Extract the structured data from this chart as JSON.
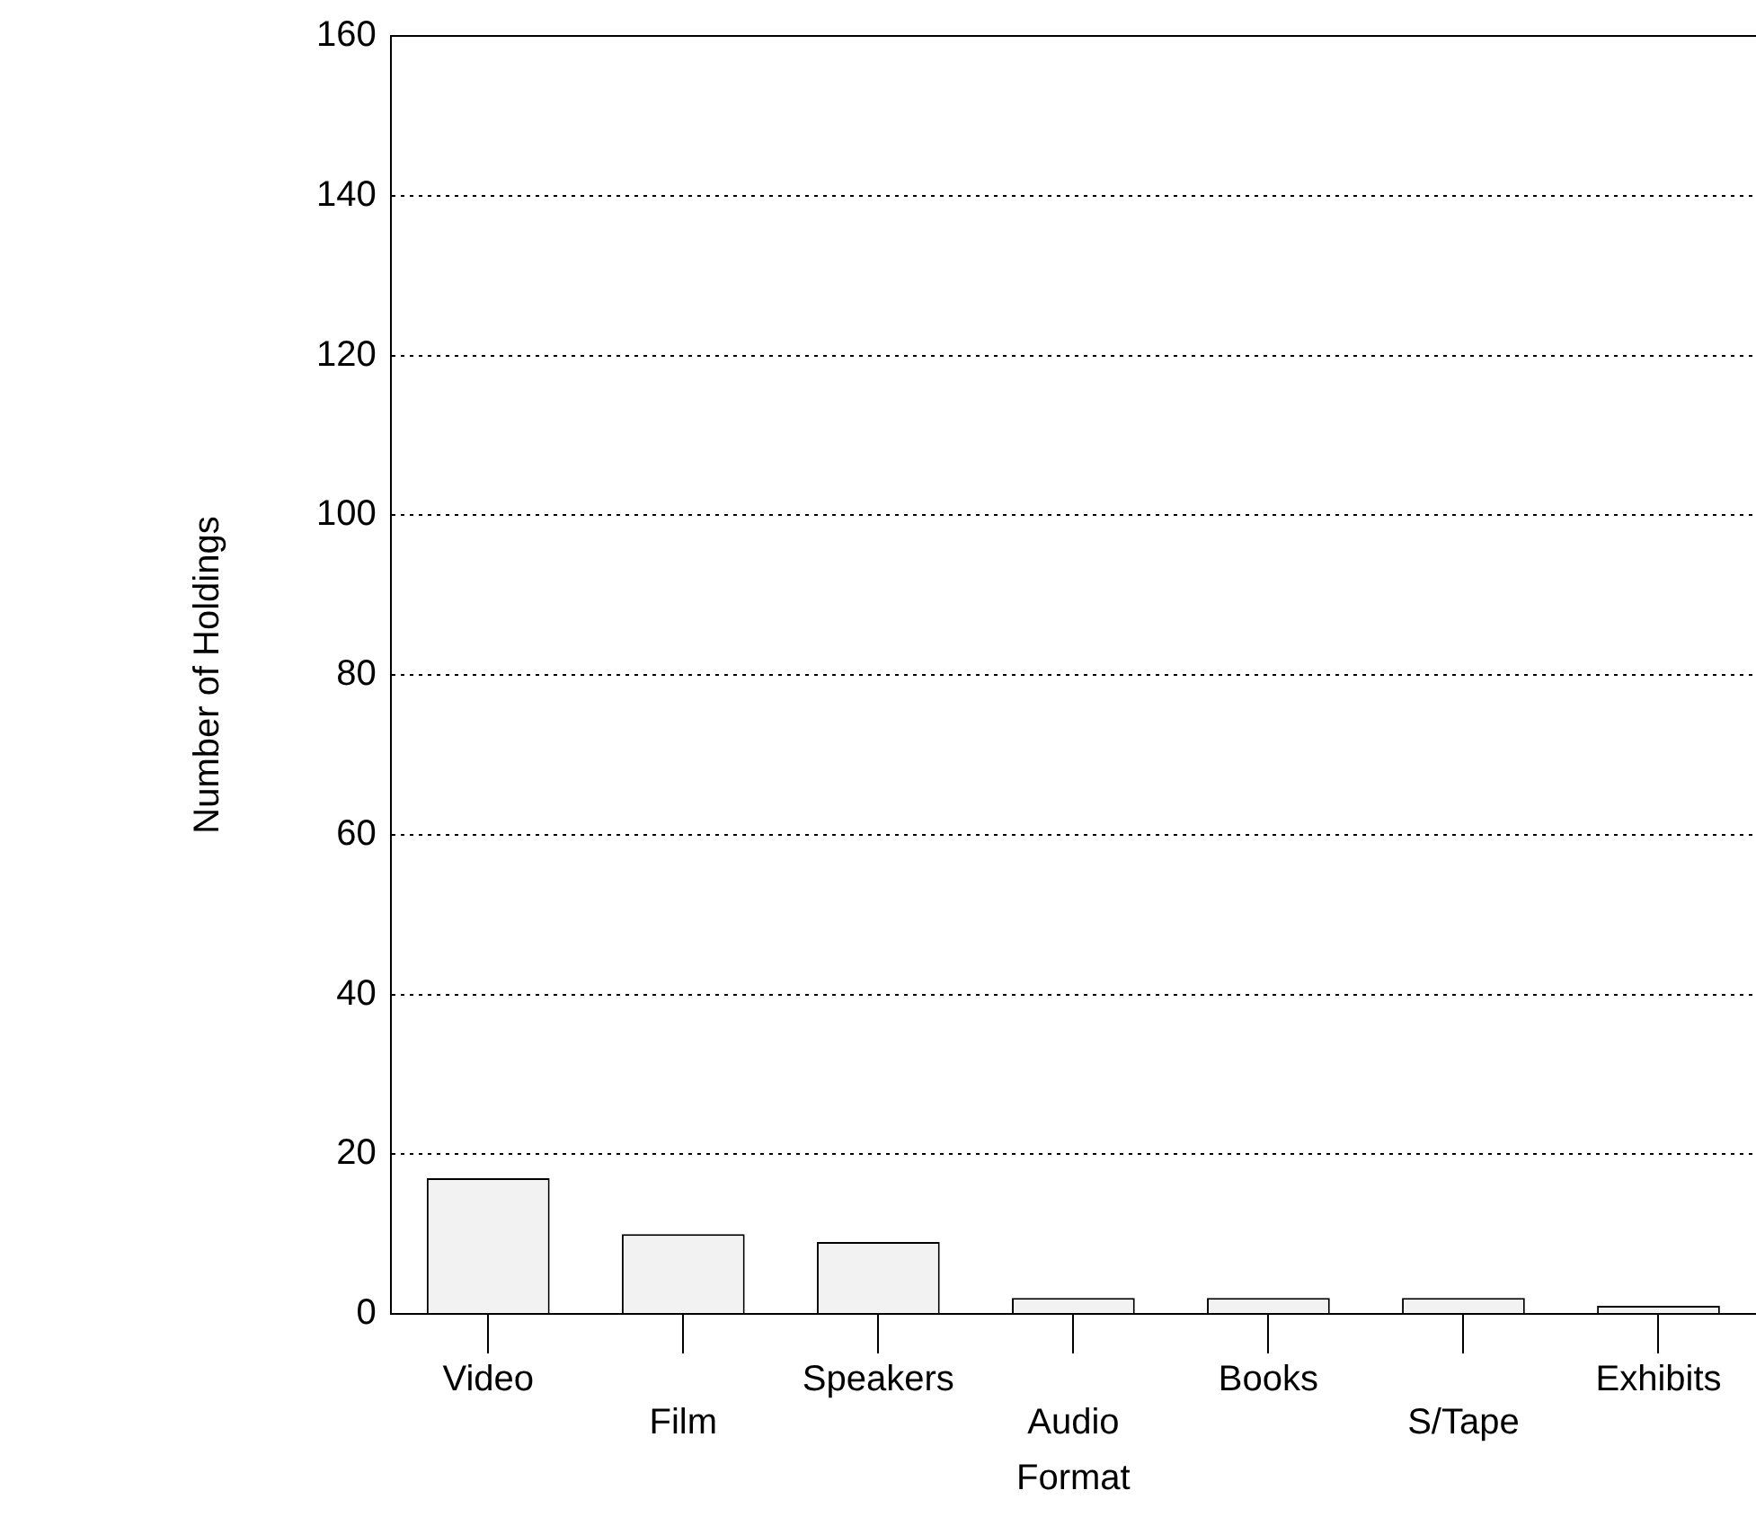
{
  "chart_data": {
    "type": "bar",
    "xlabel": "Format",
    "ylabel": "Number of Holdings",
    "categories": [
      "Video",
      "Film",
      "Speakers",
      "Audio",
      "Books",
      "S/Tape",
      "Exhibits"
    ],
    "values": [
      17,
      10,
      9,
      2,
      2,
      2,
      1
    ],
    "color": "#f2f2f2",
    "ylim": [
      0,
      160
    ],
    "yticks": [
      0,
      20,
      40,
      60,
      80,
      100,
      120,
      140,
      160
    ],
    "grid": "y",
    "legend": false
  }
}
